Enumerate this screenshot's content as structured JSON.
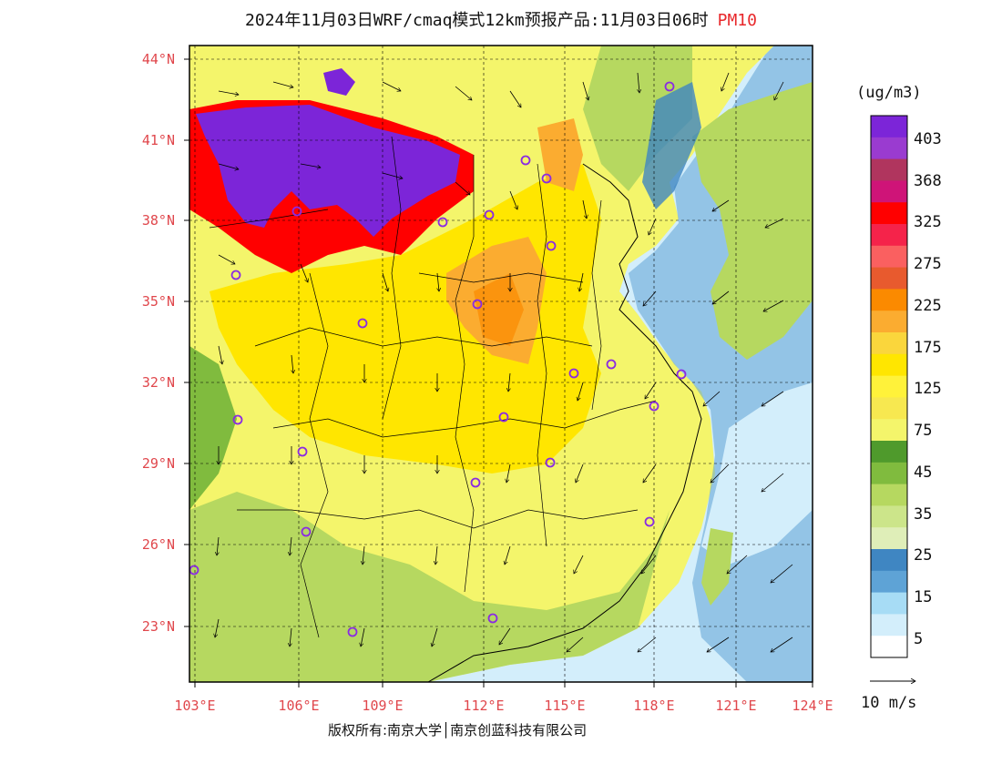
{
  "header": {
    "title": "2024年11月03日WRF/cmaq模式12km预报产品:11月03日06时",
    "pollutant": "PM10"
  },
  "axes": {
    "lat_labels": [
      "44°N",
      "41°N",
      "38°N",
      "35°N",
      "32°N",
      "29°N",
      "26°N",
      "23°N"
    ],
    "lon_labels": [
      "103°E",
      "106°E",
      "109°E",
      "112°E",
      "115°E",
      "118°E",
      "121°E",
      "124°E"
    ]
  },
  "legend": {
    "unit": "(ug/m3)",
    "levels": [
      "403",
      "368",
      "325",
      "275",
      "225",
      "175",
      "125",
      "75",
      "45",
      "35",
      "25",
      "15",
      "5"
    ],
    "colors": [
      "#7c25d8",
      "#9a3bd0",
      "#b0355e",
      "#cf1478",
      "#ff0000",
      "#f5234a",
      "#fa6060",
      "#e85a2e",
      "#fb8a00",
      "#fbac30",
      "#fad63c",
      "#ffe600",
      "#fff23a",
      "#f7e850",
      "#f4f56b",
      "#4f9a2c",
      "#80bb3e",
      "#b6d860",
      "#cce58a",
      "#dfeeb8",
      "#3f86c2",
      "#5ea3d6",
      "#a7dcf5",
      "#d3eefb",
      "#ffffff"
    ]
  },
  "wind_reference": {
    "label": "10 m/s"
  },
  "footer": {
    "copyright": "版权所有:南京大学│南京创蓝科技有限公司"
  }
}
